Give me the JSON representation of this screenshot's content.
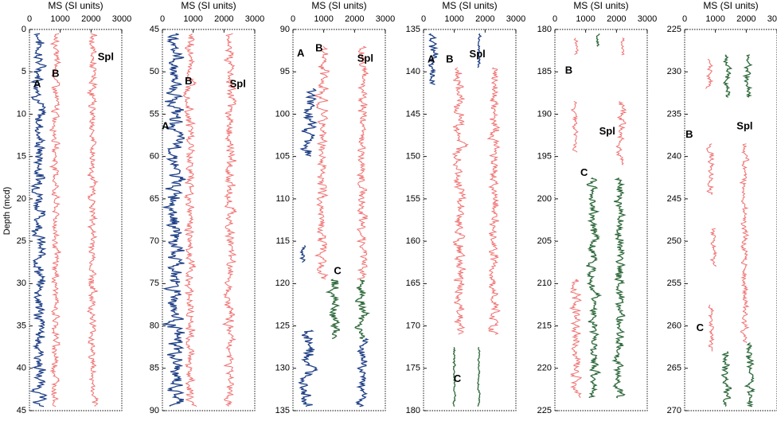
{
  "chart_data": {
    "type": "line",
    "ylabel": "Depth (mcd)",
    "xlabel_top": "MS  (SI units)",
    "xlabel_top_alt": "MS (SI units)",
    "xlim": [
      0,
      3000
    ],
    "x_ticks": [
      "0",
      "1000",
      "2000",
      "3000"
    ],
    "colors": {
      "blue": "#1f3f86",
      "red": "#f07070",
      "green": "#2f6a3c"
    },
    "panels": [
      {
        "title": "MS  (SI units)",
        "ylim": [
          0,
          45
        ],
        "y_ticks": [
          "0",
          "5",
          "10",
          "15",
          "20",
          "25",
          "30",
          "35",
          "40",
          "45"
        ],
        "labels": [
          {
            "text": "A",
            "x": 250,
            "y": 6.8
          },
          {
            "text": "B",
            "x": 850,
            "y": 5.6
          },
          {
            "text": "Spl",
            "x": 2480,
            "y": 3.6
          }
        ],
        "series": [
          {
            "color": "blue",
            "segments": [
              {
                "from": 0.5,
                "to": 44.5,
                "base": 330,
                "amp": 230
              }
            ]
          },
          {
            "color": "red",
            "segments": [
              {
                "from": 0.5,
                "to": 44.5,
                "base": 850,
                "amp": 140
              }
            ]
          },
          {
            "color": "red",
            "segments": [
              {
                "from": 0.5,
                "to": 44.5,
                "base": 2050,
                "amp": 150
              }
            ]
          }
        ]
      },
      {
        "title": "MS (SI units)",
        "ylim": [
          45,
          90
        ],
        "y_ticks": [
          "45",
          "50",
          "55",
          "60",
          "65",
          "70",
          "75",
          "80",
          "85",
          "90"
        ],
        "labels": [
          {
            "text": "A",
            "x": 100,
            "y": 56.8
          },
          {
            "text": "B",
            "x": 850,
            "y": 51.5
          },
          {
            "text": "Spl",
            "x": 2450,
            "y": 51.8
          }
        ],
        "series": [
          {
            "color": "blue",
            "segments": [
              {
                "from": 45.5,
                "to": 89.5,
                "base": 420,
                "amp": 300
              }
            ]
          },
          {
            "color": "red",
            "segments": [
              {
                "from": 45.5,
                "to": 89.5,
                "base": 900,
                "amp": 180
              }
            ]
          },
          {
            "color": "red",
            "segments": [
              {
                "from": 45.5,
                "to": 89.5,
                "base": 2200,
                "amp": 180
              }
            ]
          }
        ]
      },
      {
        "title": "MS (SI units)",
        "ylim": [
          90,
          135
        ],
        "y_ticks": [
          "90",
          "95",
          "100",
          "105",
          "110",
          "115",
          "120",
          "125",
          "130",
          "135"
        ],
        "labels": [
          {
            "text": "A",
            "x": 250,
            "y": 93.2
          },
          {
            "text": "B",
            "x": 850,
            "y": 92.6
          },
          {
            "text": "Spl",
            "x": 2350,
            "y": 93.8
          },
          {
            "text": "C",
            "x": 1450,
            "y": 118.9
          }
        ],
        "series": [
          {
            "color": "blue",
            "segments": [
              {
                "from": 97,
                "to": 105,
                "base": 520,
                "amp": 250
              },
              {
                "from": 115.5,
                "to": 117.5,
                "base": 320,
                "amp": 100
              },
              {
                "from": 125.5,
                "to": 134.5,
                "base": 480,
                "amp": 250
              }
            ]
          },
          {
            "color": "red",
            "segments": [
              {
                "from": 92,
                "to": 119.5,
                "base": 950,
                "amp": 200
              }
            ]
          },
          {
            "color": "green",
            "segments": [
              {
                "from": 119.5,
                "to": 126.5,
                "base": 1350,
                "amp": 200
              }
            ]
          },
          {
            "color": "red",
            "segments": [
              {
                "from": 92,
                "to": 119.5,
                "base": 2250,
                "amp": 170
              }
            ]
          },
          {
            "color": "green",
            "segments": [
              {
                "from": 119.5,
                "to": 126.5,
                "base": 2250,
                "amp": 200
              }
            ]
          },
          {
            "color": "blue",
            "segments": [
              {
                "from": 126.5,
                "to": 134.5,
                "base": 2250,
                "amp": 180
              }
            ]
          }
        ]
      },
      {
        "title": "MS (SI units)",
        "ylim": [
          135,
          180
        ],
        "y_ticks": [
          "135",
          "140",
          "145",
          "150",
          "155",
          "160",
          "165",
          "170",
          "175",
          "180"
        ],
        "labels": [
          {
            "text": "A",
            "x": 250,
            "y": 138.9
          },
          {
            "text": "B",
            "x": 850,
            "y": 138.9
          },
          {
            "text": "Spl",
            "x": 1750,
            "y": 138.3
          },
          {
            "text": "C",
            "x": 1100,
            "y": 176.6
          }
        ],
        "series": [
          {
            "color": "blue",
            "segments": [
              {
                "from": 135.5,
                "to": 141.5,
                "base": 300,
                "amp": 150
              }
            ]
          },
          {
            "color": "red",
            "segments": [
              {
                "from": 139.5,
                "to": 171,
                "base": 1150,
                "amp": 200
              }
            ]
          },
          {
            "color": "green",
            "segments": [
              {
                "from": 172.5,
                "to": 179.5,
                "base": 1000,
                "amp": 50
              }
            ]
          },
          {
            "color": "blue",
            "segments": [
              {
                "from": 135.5,
                "to": 139.5,
                "base": 1800,
                "amp": 60
              }
            ]
          },
          {
            "color": "red",
            "segments": [
              {
                "from": 139.5,
                "to": 171,
                "base": 2300,
                "amp": 180
              }
            ]
          },
          {
            "color": "green",
            "segments": [
              {
                "from": 172.5,
                "to": 179.5,
                "base": 1800,
                "amp": 40
              }
            ]
          }
        ]
      },
      {
        "title": "MS (SI units)",
        "ylim": [
          180,
          225
        ],
        "y_ticks": [
          "180",
          "185",
          "190",
          "195",
          "200",
          "205",
          "210",
          "215",
          "220",
          "225"
        ],
        "labels": [
          {
            "text": "B",
            "x": 450,
            "y": 185.2
          },
          {
            "text": "Spl",
            "x": 1700,
            "y": 192.4
          },
          {
            "text": "C",
            "x": 950,
            "y": 197.3
          }
        ],
        "series": [
          {
            "color": "red",
            "segments": [
              {
                "from": 181,
                "to": 183,
                "base": 700,
                "amp": 80
              },
              {
                "from": 188.5,
                "to": 194.5,
                "base": 650,
                "amp": 120
              },
              {
                "from": 209.5,
                "to": 223.5,
                "base": 700,
                "amp": 180
              }
            ]
          },
          {
            "color": "green",
            "segments": [
              {
                "from": 180.5,
                "to": 182,
                "base": 1400,
                "amp": 80
              },
              {
                "from": 197.5,
                "to": 223.5,
                "base": 1250,
                "amp": 180
              }
            ]
          },
          {
            "color": "red",
            "segments": [
              {
                "from": 181,
                "to": 183,
                "base": 2200,
                "amp": 80
              },
              {
                "from": 188.5,
                "to": 196,
                "base": 2150,
                "amp": 150
              }
            ]
          },
          {
            "color": "green",
            "segments": [
              {
                "from": 197.5,
                "to": 223.5,
                "base": 2100,
                "amp": 170
              }
            ]
          }
        ]
      },
      {
        "title": "MS (SI units)",
        "ylim": [
          225,
          270
        ],
        "y_ticks": [
          "225",
          "230",
          "235",
          "240",
          "245",
          "250",
          "255",
          "260",
          "265",
          "270"
        ],
        "labels": [
          {
            "text": "B",
            "x": 150,
            "y": 237.8
          },
          {
            "text": "Spl",
            "x": 1950,
            "y": 236.8
          },
          {
            "text": "C",
            "x": 500,
            "y": 260.6
          }
        ],
        "series": [
          {
            "color": "red",
            "segments": [
              {
                "from": 228.5,
                "to": 232,
                "base": 800,
                "amp": 100
              },
              {
                "from": 238.5,
                "to": 244.5,
                "base": 850,
                "amp": 140
              },
              {
                "from": 248.5,
                "to": 253,
                "base": 950,
                "amp": 120
              },
              {
                "from": 257.5,
                "to": 263,
                "base": 850,
                "amp": 100
              }
            ]
          },
          {
            "color": "green",
            "segments": [
              {
                "from": 228,
                "to": 233,
                "base": 1400,
                "amp": 120
              },
              {
                "from": 263,
                "to": 269.5,
                "base": 1350,
                "amp": 150
              }
            ]
          },
          {
            "color": "red",
            "segments": [
              {
                "from": 238.5,
                "to": 262,
                "base": 1950,
                "amp": 120
              }
            ]
          },
          {
            "color": "green",
            "segments": [
              {
                "from": 228,
                "to": 233,
                "base": 2050,
                "amp": 120
              },
              {
                "from": 262,
                "to": 269.5,
                "base": 2100,
                "amp": 150
              }
            ]
          }
        ]
      }
    ]
  }
}
